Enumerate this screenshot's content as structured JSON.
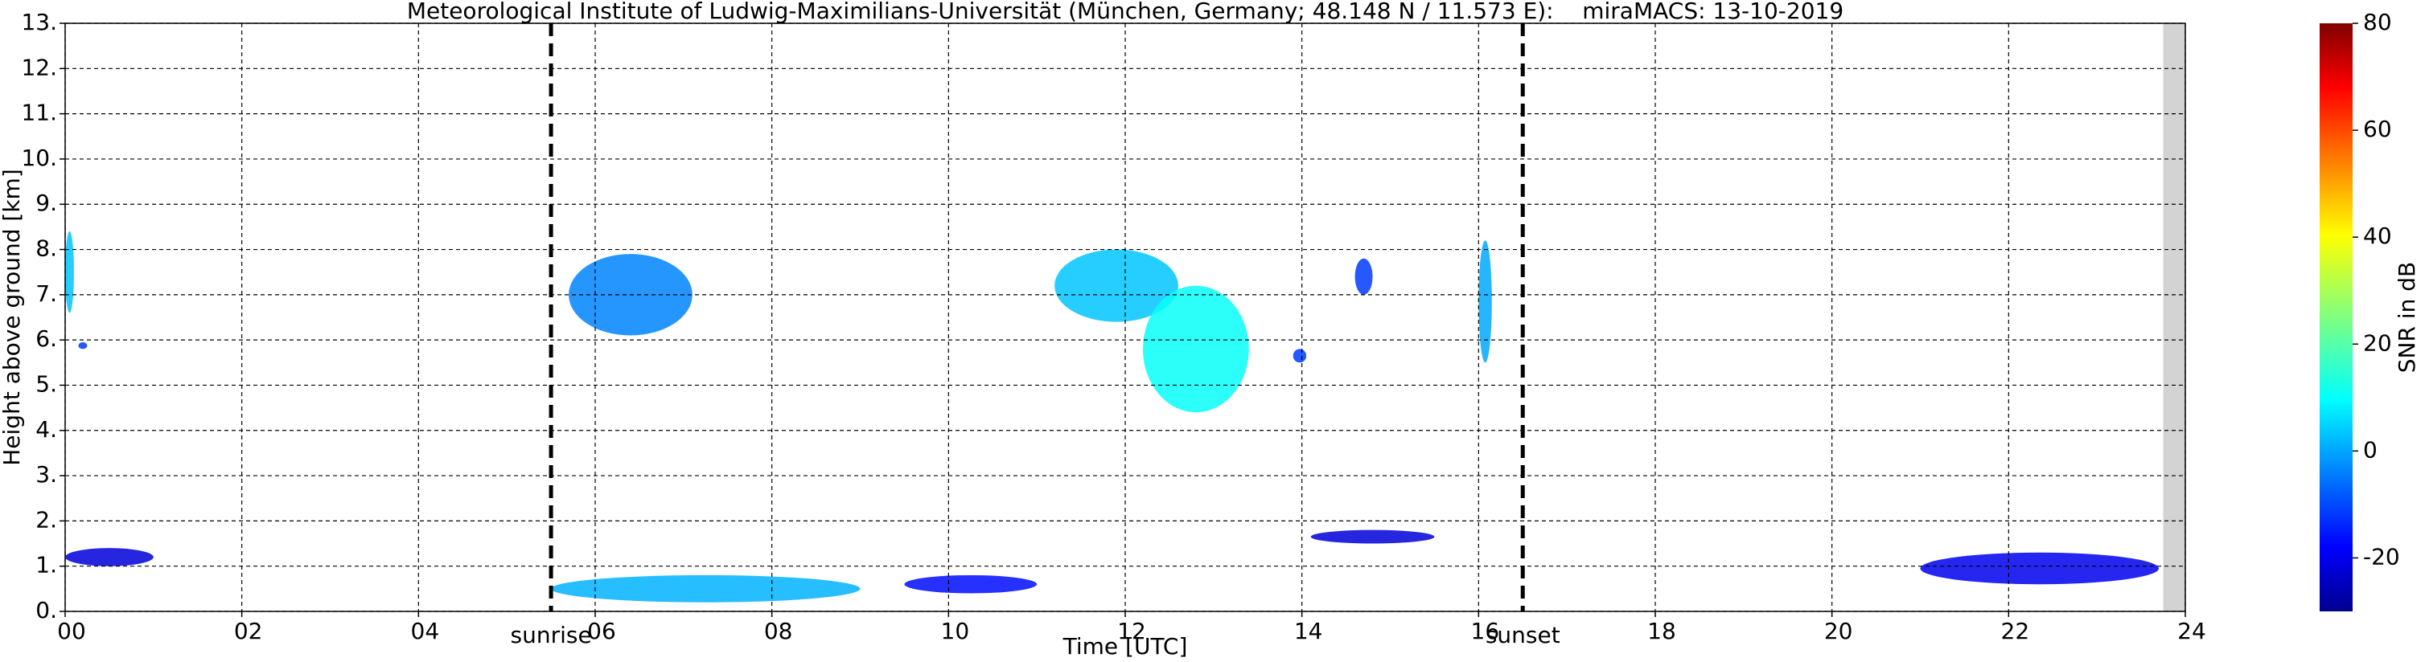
{
  "chart_data": {
    "type": "time-height",
    "title": "Meteorological Institute of Ludwig-Maximilians-Universität (München, Germany; 48.148 N / 11.573 E):    miraMACS: 13-10-2019",
    "x_label": "Time [UTC]",
    "y_label": "Height above ground [km]",
    "colorbar_label": "SNR in dB",
    "xlim": [
      0,
      24
    ],
    "ylim": [
      0,
      13
    ],
    "xticks": [
      {
        "value": 0,
        "label": "00"
      },
      {
        "value": 2,
        "label": "02"
      },
      {
        "value": 4,
        "label": "04"
      },
      {
        "value": 6,
        "label": "06"
      },
      {
        "value": 8,
        "label": "08"
      },
      10,
      12,
      14,
      16,
      18,
      20,
      22,
      24
    ],
    "yticks": [
      {
        "value": 0,
        "label": "0."
      },
      {
        "value": 1,
        "label": "1."
      },
      {
        "value": 2,
        "label": "2."
      },
      {
        "value": 3,
        "label": "3."
      },
      {
        "value": 4,
        "label": "4."
      },
      {
        "value": 5,
        "label": "5."
      },
      {
        "value": 6,
        "label": "6."
      },
      {
        "value": 7,
        "label": "7."
      },
      {
        "value": 8,
        "label": "8."
      },
      {
        "value": 9,
        "label": "9."
      },
      {
        "value": 10,
        "label": "10."
      },
      {
        "value": 11,
        "label": "11."
      },
      {
        "value": 12,
        "label": "12."
      },
      {
        "value": 13,
        "label": "13."
      }
    ],
    "grid": true,
    "missing_data_from": 23.75,
    "colorbar_lim": [
      -30,
      80
    ],
    "colorbar_ticks": [
      -20,
      0,
      20,
      40,
      60,
      80
    ],
    "annotations": [
      {
        "text": "sunrise",
        "x": 5.5
      },
      {
        "text": "sunset",
        "x": 16.5
      }
    ],
    "echoes": [
      {
        "t0": 0.0,
        "t1": 0.1,
        "h0": 6.6,
        "h1": 8.4,
        "snr": 5
      },
      {
        "t0": 0.15,
        "t1": 0.25,
        "h0": 5.8,
        "h1": 5.95,
        "snr": -10
      },
      {
        "t0": 5.7,
        "t1": 7.1,
        "h0": 6.1,
        "h1": 7.9,
        "snr": -2
      },
      {
        "t0": 11.2,
        "t1": 12.6,
        "h0": 6.4,
        "h1": 8.0,
        "snr": 5
      },
      {
        "t0": 12.2,
        "t1": 13.4,
        "h0": 4.4,
        "h1": 7.2,
        "snr": 12
      },
      {
        "t0": 13.9,
        "t1": 14.05,
        "h0": 5.5,
        "h1": 5.8,
        "snr": -10
      },
      {
        "t0": 14.6,
        "t1": 14.8,
        "h0": 7.0,
        "h1": 7.8,
        "snr": -10
      },
      {
        "t0": 16.0,
        "t1": 16.15,
        "h0": 5.5,
        "h1": 8.2,
        "snr": 2
      },
      {
        "t0": 14.1,
        "t1": 15.5,
        "h0": 1.5,
        "h1": 1.8,
        "snr": -20
      },
      {
        "t0": 0.0,
        "t1": 1.0,
        "h0": 1.0,
        "h1": 1.4,
        "snr": -20
      },
      {
        "t0": 5.5,
        "t1": 9.0,
        "h0": 0.2,
        "h1": 0.8,
        "snr": 3
      },
      {
        "t0": 9.5,
        "t1": 11.0,
        "h0": 0.4,
        "h1": 0.8,
        "snr": -15
      },
      {
        "t0": 21.0,
        "t1": 23.7,
        "h0": 0.6,
        "h1": 1.3,
        "snr": -18
      }
    ]
  }
}
